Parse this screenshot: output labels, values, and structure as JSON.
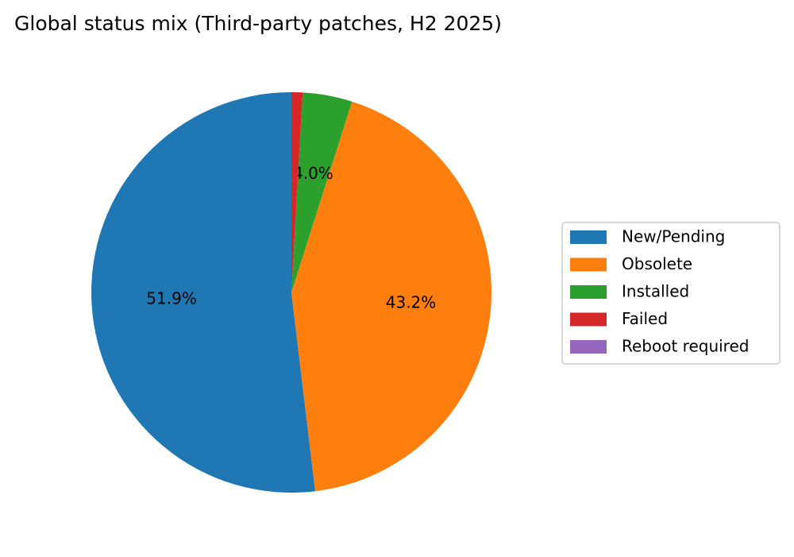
{
  "chart_data": {
    "type": "pie",
    "title": "Global status mix (Third-party patches, H2 2025)",
    "categories": [
      "New/Pending",
      "Obsolete",
      "Installed",
      "Failed",
      "Reboot required"
    ],
    "values": [
      51.9,
      43.2,
      4.0,
      0.9,
      0.0
    ],
    "value_labels": [
      "51.9%",
      "43.2%",
      "4.0%",
      null,
      null
    ],
    "colors": [
      "#1f77b4",
      "#ff7f0e",
      "#2ca02c",
      "#d62728",
      "#9467bd"
    ],
    "start_angle": 90,
    "legend": "right"
  }
}
